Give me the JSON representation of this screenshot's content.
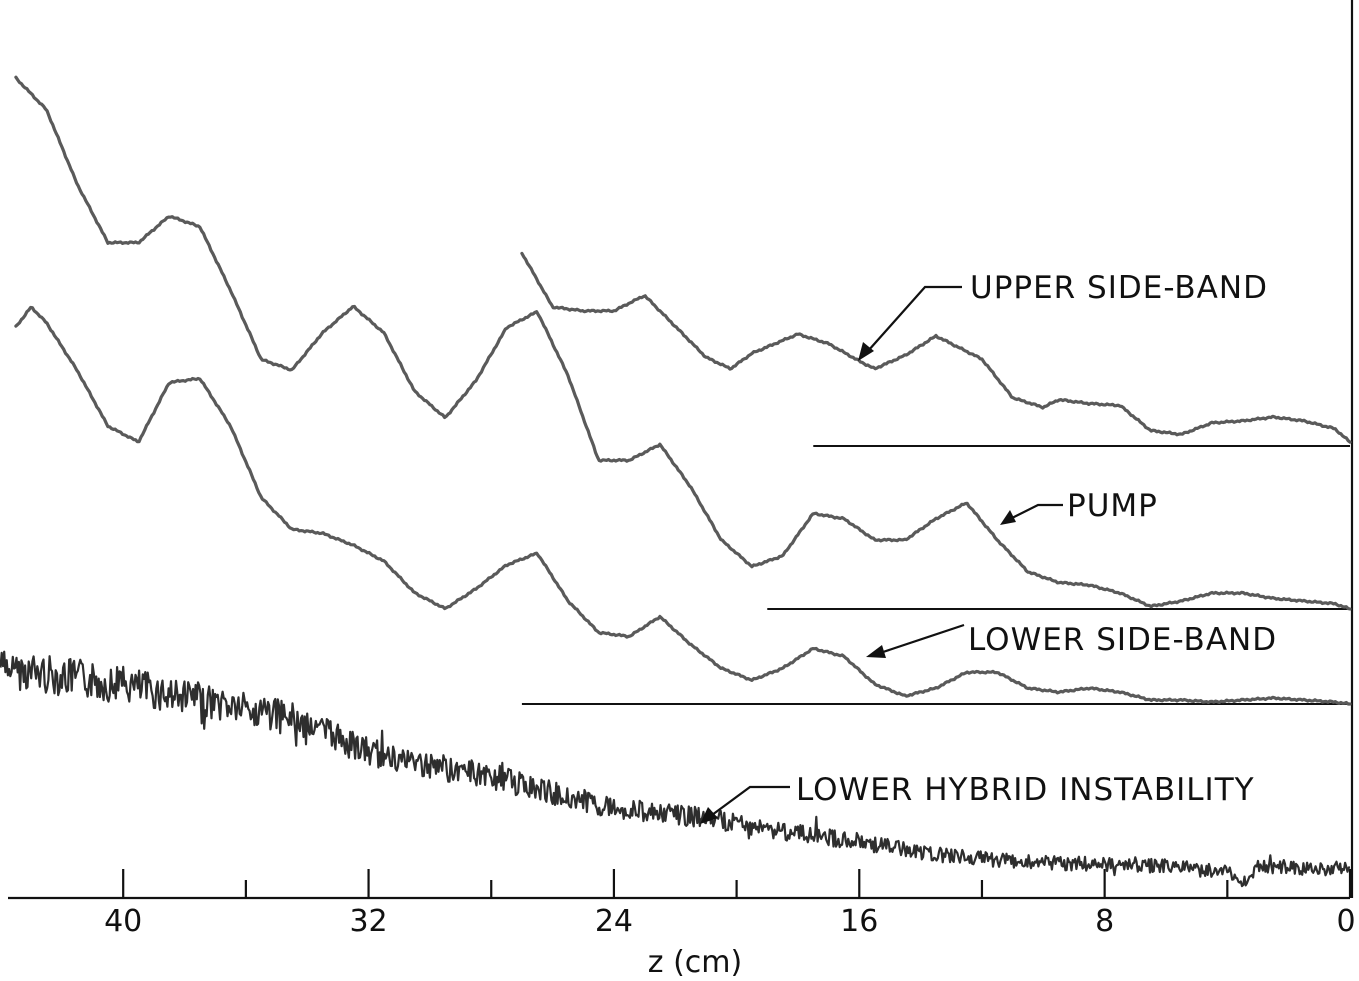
{
  "chart_data": {
    "type": "line",
    "xlabel": "z (cm)",
    "xlim": [
      44,
      0
    ],
    "x_reversed": true,
    "x_tick_labels": [
      40,
      32,
      24,
      16,
      8,
      0
    ],
    "x_ticks_major": [
      40,
      32,
      24,
      16,
      8,
      0
    ],
    "x_ticks_minor": [
      36,
      28,
      20,
      12,
      4
    ],
    "y_units": "relative amplitude (0-100, baseline = 0)",
    "grid": false,
    "legend": "inline labels with arrows",
    "series": [
      {
        "name": "UPPER SIDE-BAND",
        "x": [
          27.0,
          26.0,
          25.0,
          24.0,
          23.0,
          22.0,
          21.0,
          20.2,
          19.5,
          18.0,
          17.0,
          16.0,
          15.5,
          14.5,
          13.5,
          12.0,
          11.0,
          10.0,
          9.5,
          8.5,
          7.5,
          6.5,
          5.5,
          4.5,
          3.5,
          2.5,
          1.5,
          0.5,
          0.0
        ],
        "y": [
          100,
          72,
          70,
          70,
          78,
          62,
          46,
          40,
          48,
          58,
          53,
          44,
          40,
          47,
          57,
          45,
          25,
          20,
          24,
          22,
          21,
          8,
          6,
          12,
          13,
          15,
          13,
          9,
          2
        ]
      },
      {
        "name": "PUMP",
        "x": [
          43.5,
          42.5,
          41.5,
          40.5,
          39.5,
          38.5,
          37.5,
          36.5,
          35.5,
          34.5,
          33.5,
          32.5,
          31.5,
          30.5,
          29.5,
          28.5,
          27.5,
          26.5,
          25.5,
          24.5,
          23.5,
          22.5,
          21.5,
          20.5,
          19.5,
          18.5,
          17.5,
          16.5,
          15.5,
          14.5,
          13.5,
          12.5,
          11.5,
          10.5,
          9.5,
          8.5,
          7.5,
          6.5,
          5.5,
          4.5,
          3.5,
          2.5,
          1.5,
          0.5,
          0.0
        ],
        "y": [
          100,
          94,
          80,
          69,
          69,
          74,
          72,
          60,
          47,
          45,
          52,
          57,
          52,
          41,
          36,
          43,
          53,
          56,
          44,
          28,
          28,
          31,
          23,
          13,
          8,
          10,
          18,
          17,
          13,
          13,
          17,
          20,
          13,
          7,
          5,
          4.5,
          3,
          0.5,
          1.5,
          3,
          3,
          2,
          1.5,
          1,
          0
        ]
      },
      {
        "name": "LOWER SIDE-BAND",
        "x": [
          43.5,
          43.0,
          42.5,
          41.5,
          40.5,
          39.5,
          38.5,
          37.5,
          36.5,
          35.5,
          34.5,
          33.5,
          32.5,
          31.5,
          30.5,
          29.5,
          28.5,
          27.5,
          26.5,
          25.5,
          24.5,
          23.5,
          22.5,
          21.5,
          20.5,
          19.5,
          18.5,
          17.5,
          16.5,
          15.5,
          14.5,
          13.5,
          12.5,
          11.5,
          10.5,
          9.5,
          8.5,
          7.5,
          6.5,
          5.5,
          4.5,
          3.5,
          2.5,
          1.5,
          0.5,
          0.0
        ],
        "y": [
          95,
          100,
          96,
          84,
          70,
          66,
          81,
          82,
          70,
          52,
          44,
          43,
          40,
          36,
          28,
          24,
          29,
          35,
          38,
          26,
          18,
          17,
          22,
          15,
          9,
          6,
          9,
          14,
          12,
          5,
          2,
          4,
          8,
          8,
          4,
          3,
          4,
          3,
          1,
          1,
          0.5,
          1,
          1.5,
          1,
          0.5,
          0
        ]
      },
      {
        "name": "LOWER HYBRID INSTABILITY",
        "x": [
          44,
          42,
          40,
          38,
          36,
          34,
          32,
          30,
          28,
          26,
          24,
          22,
          20,
          18,
          16,
          14,
          12,
          10,
          8,
          6,
          4,
          3.5,
          3,
          2,
          1,
          0
        ],
        "y": [
          100,
          96,
          92,
          86,
          81,
          74,
          60,
          54,
          49,
          41,
          34,
          31,
          27,
          22,
          18,
          13,
          10,
          8,
          7.5,
          6.5,
          4,
          -2,
          7,
          6,
          5,
          6
        ]
      }
    ]
  }
}
